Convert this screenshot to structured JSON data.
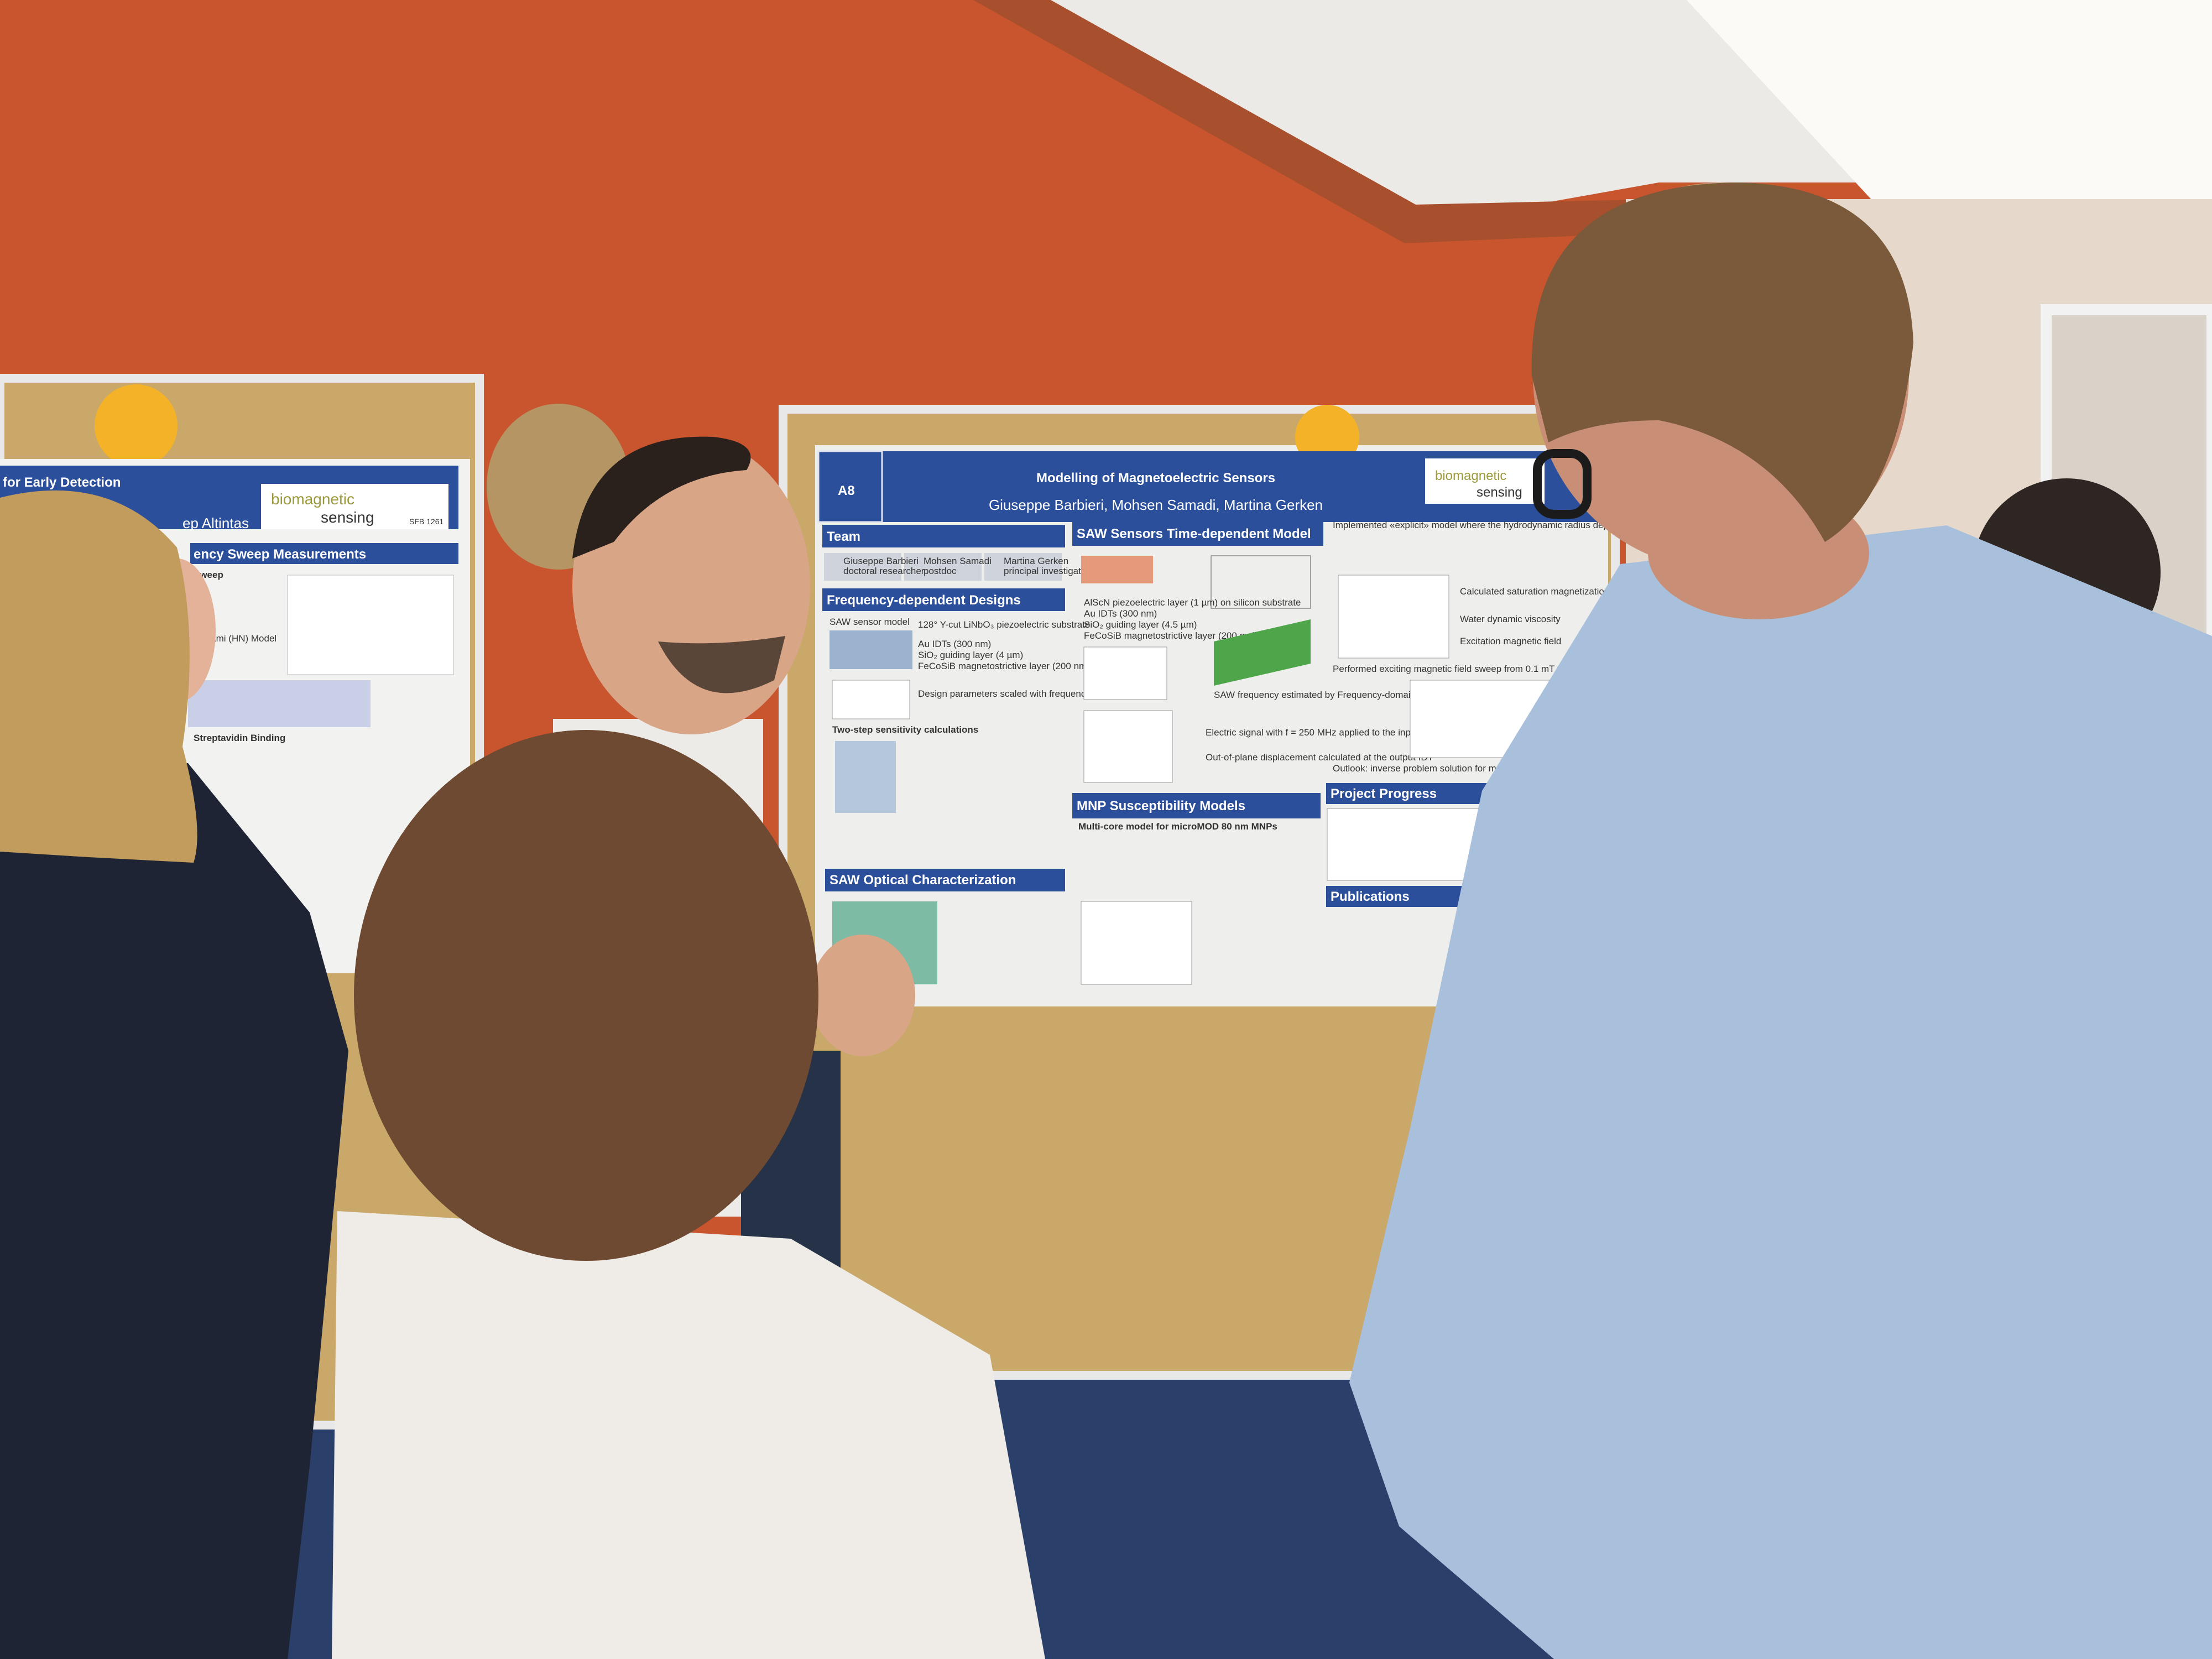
{
  "scene": {
    "description_tags": [
      "poster-session",
      "indoor"
    ],
    "colors": {
      "wall": "#c8552e",
      "poster_blue": "#2b4f9a",
      "cork": "#c9a86a",
      "carpet": "#2a3f6a",
      "shirt": "#a9c0dc"
    }
  },
  "center_poster": {
    "id_label": "A8",
    "title": "Modelling of Magnetoelectric Sensors",
    "authors": "Giuseppe Barbieri, Mohsen Samadi, Martina Gerken",
    "logo": {
      "line1": "biomagnetic",
      "line2": "sensing"
    },
    "sections": {
      "team": "Team",
      "freq": "Frequency-dependent Designs",
      "saw_time": "SAW Sensors Time-dependent Model",
      "mnp": "MNP Susceptibility Models",
      "optical": "SAW Optical Characterization",
      "progress": "Project Progress",
      "publications": "Publications"
    },
    "team": [
      {
        "name": "Giuseppe Barbieri",
        "role": "doctoral researcher"
      },
      {
        "name": "Mohsen Samadi",
        "role": "postdoc"
      },
      {
        "name": "Martina Gerken",
        "role": "principal investigator"
      }
    ],
    "freq_text": [
      "SAW sensor model",
      "128° Y-cut LiNbO₃ piezoelectric substrate",
      "Au IDTs (300 nm)",
      "SiO₂ guiding layer (4 µm)",
      "FeCoSiB magnetostrictive layer (200 nm)",
      "Design parameters scaled with frequency",
      "Two-step sensitivity calculations"
    ],
    "saw_text": [
      "AlScN piezoelectric layer (1 µm) on silicon substrate",
      "Au IDTs (300 nm)",
      "SiO₂ guiding layer (4.5 µm)",
      "FeCoSiB magnetostrictive layer (200 nm)",
      "SAW frequency estimated by Frequency-domain simulations",
      "Electric signal with f = 250 MHz applied to the input IDT",
      "Out-of-plane displacement calculated at the output IDT"
    ],
    "right_text": [
      "Implemented «explicit» model where the hydrodynamic radius dependency for the Brownian susceptibility is considered",
      "Calculated saturation magnetization for single particle",
      "Water dynamic viscosity",
      "Excitation magnetic field",
      "Performed exciting magnetic field sweep from 0.1 mT to 3 mT",
      "Outlook: inverse problem solution for multiplexed bioassay characterization of MNP ensembles"
    ],
    "mnp_text": "Multi-core model for microMOD 80 nm MNPs"
  },
  "left_poster": {
    "title_fragment": "for Early Detection",
    "author_fragment": "ep Altintas",
    "section": "ency Sweep Measurements",
    "sub1": "Sweep",
    "sub2": "Negami (HN) Model",
    "sub3": "Streptavidin Binding",
    "logo": {
      "line1": "biomagnetic",
      "line2": "sensing",
      "code": "SFB 1261"
    }
  }
}
